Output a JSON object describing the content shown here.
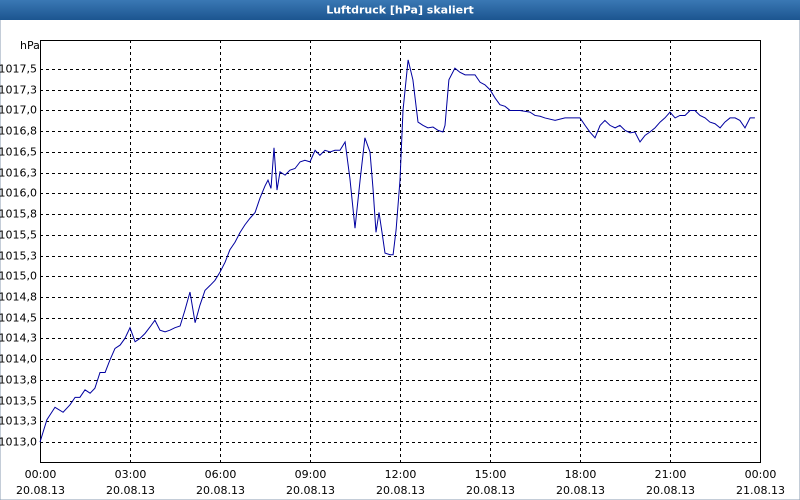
{
  "chart_data": {
    "type": "line",
    "title": "Luftdruck [hPa] skaliert",
    "y_label": "hPa",
    "xlim": [
      0,
      24
    ],
    "ylim": [
      1012.76,
      1017.85
    ],
    "grid": true,
    "xticks": [
      {
        "value": 0,
        "label": [
          "00:00",
          "20.08.13"
        ]
      },
      {
        "value": 3,
        "label": [
          "03:00",
          "20.08.13"
        ]
      },
      {
        "value": 6,
        "label": [
          "06:00",
          "20.08.13"
        ]
      },
      {
        "value": 9,
        "label": [
          "09:00",
          "20.08.13"
        ]
      },
      {
        "value": 12,
        "label": [
          "12:00",
          "20.08.13"
        ]
      },
      {
        "value": 15,
        "label": [
          "15:00",
          "20.08.13"
        ]
      },
      {
        "value": 18,
        "label": [
          "18:00",
          "20.08.13"
        ]
      },
      {
        "value": 21,
        "label": [
          "21:00",
          "20.08.13"
        ]
      },
      {
        "value": 24,
        "label": [
          "00:00",
          "21.08.13"
        ]
      }
    ],
    "yticks": [
      {
        "value": 1013.0,
        "label": "1013,0"
      },
      {
        "value": 1013.25,
        "label": "1013,3"
      },
      {
        "value": 1013.5,
        "label": "1013,5"
      },
      {
        "value": 1013.75,
        "label": "1013,8"
      },
      {
        "value": 1014.0,
        "label": "1014,0"
      },
      {
        "value": 1014.25,
        "label": "1014,3"
      },
      {
        "value": 1014.5,
        "label": "1014,5"
      },
      {
        "value": 1014.75,
        "label": "1014,8"
      },
      {
        "value": 1015.0,
        "label": "1015,0"
      },
      {
        "value": 1015.25,
        "label": "1015,3"
      },
      {
        "value": 1015.5,
        "label": "1015,5"
      },
      {
        "value": 1015.75,
        "label": "1015,8"
      },
      {
        "value": 1016.0,
        "label": "1016,0"
      },
      {
        "value": 1016.25,
        "label": "1016,3"
      },
      {
        "value": 1016.5,
        "label": "1016,5"
      },
      {
        "value": 1016.75,
        "label": "1016,8"
      },
      {
        "value": 1017.0,
        "label": "1017,0"
      },
      {
        "value": 1017.25,
        "label": "1017,3"
      },
      {
        "value": 1017.5,
        "label": "1017,5"
      }
    ],
    "x": [
      0,
      0.23,
      0.5,
      0.77,
      1.0,
      1.17,
      1.33,
      1.5,
      1.67,
      1.83,
      2.0,
      2.17,
      2.33,
      2.5,
      2.67,
      2.83,
      3.0,
      3.17,
      3.33,
      3.5,
      3.67,
      3.83,
      4.0,
      4.17,
      4.33,
      4.5,
      4.67,
      4.83,
      5.0,
      5.17,
      5.33,
      5.5,
      5.67,
      5.83,
      6.0,
      6.17,
      6.33,
      6.5,
      6.67,
      6.83,
      7.0,
      7.17,
      7.33,
      7.5,
      7.6,
      7.7,
      7.8,
      7.9,
      8.0,
      8.17,
      8.33,
      8.5,
      8.67,
      8.83,
      9.0,
      9.17,
      9.33,
      9.5,
      9.67,
      9.83,
      10.0,
      10.17,
      10.33,
      10.5,
      10.67,
      10.83,
      11.0,
      11.1,
      11.2,
      11.3,
      11.4,
      11.5,
      11.67,
      11.77,
      11.87,
      12.0,
      12.1,
      12.27,
      12.43,
      12.6,
      12.77,
      12.93,
      13.1,
      13.27,
      13.43,
      13.5,
      13.63,
      13.83,
      14.0,
      14.17,
      14.33,
      14.5,
      14.67,
      14.83,
      15.0,
      15.17,
      15.33,
      15.5,
      15.67,
      16.0,
      16.33,
      16.5,
      16.67,
      16.83,
      17.17,
      17.5,
      17.83,
      18.0,
      18.17,
      18.33,
      18.5,
      18.67,
      18.83,
      19.0,
      19.17,
      19.33,
      19.5,
      19.67,
      19.83,
      20.0,
      20.17,
      20.33,
      20.5,
      20.67,
      20.83,
      21.0,
      21.17,
      21.33,
      21.5,
      21.67,
      21.83,
      22.0,
      22.17,
      22.33,
      22.5,
      22.67,
      22.83,
      23.0,
      23.17,
      23.33,
      23.5,
      23.67,
      23.83
    ],
    "series": [
      {
        "color": "#0000a0",
        "values": [
          1013.0,
          1013.27,
          1013.42,
          1013.36,
          1013.45,
          1013.54,
          1013.54,
          1013.63,
          1013.59,
          1013.65,
          1013.84,
          1013.84,
          1013.99,
          1014.13,
          1014.17,
          1014.25,
          1014.38,
          1014.21,
          1014.25,
          1014.31,
          1014.39,
          1014.47,
          1014.35,
          1014.33,
          1014.35,
          1014.38,
          1014.4,
          1014.59,
          1014.81,
          1014.44,
          1014.65,
          1014.83,
          1014.89,
          1014.95,
          1015.05,
          1015.17,
          1015.32,
          1015.41,
          1015.53,
          1015.62,
          1015.7,
          1015.77,
          1015.94,
          1016.09,
          1016.16,
          1016.06,
          1016.55,
          1016.04,
          1016.26,
          1016.22,
          1016.28,
          1016.3,
          1016.38,
          1016.4,
          1016.38,
          1016.52,
          1016.46,
          1016.52,
          1016.5,
          1016.52,
          1016.52,
          1016.62,
          1016.18,
          1015.58,
          1016.16,
          1016.67,
          1016.5,
          1016.06,
          1015.53,
          1015.77,
          1015.53,
          1015.28,
          1015.26,
          1015.26,
          1015.56,
          1016.16,
          1017.0,
          1017.61,
          1017.37,
          1016.86,
          1016.82,
          1016.79,
          1016.8,
          1016.76,
          1016.74,
          1016.82,
          1017.37,
          1017.51,
          1017.46,
          1017.43,
          1017.43,
          1017.43,
          1017.34,
          1017.31,
          1017.25,
          1017.15,
          1017.07,
          1017.05,
          1017.0,
          1017.0,
          1016.98,
          1016.94,
          1016.93,
          1016.91,
          1016.88,
          1016.91,
          1016.91,
          1016.91,
          1016.82,
          1016.74,
          1016.67,
          1016.82,
          1016.88,
          1016.82,
          1016.79,
          1016.82,
          1016.76,
          1016.73,
          1016.74,
          1016.62,
          1016.7,
          1016.74,
          1016.79,
          1016.86,
          1016.91,
          1016.98,
          1016.91,
          1016.94,
          1016.94,
          1017.0,
          1017.0,
          1016.94,
          1016.91,
          1016.86,
          1016.84,
          1016.79,
          1016.86,
          1016.91,
          1016.91,
          1016.88,
          1016.79,
          1016.91,
          1016.91
        ]
      }
    ]
  }
}
